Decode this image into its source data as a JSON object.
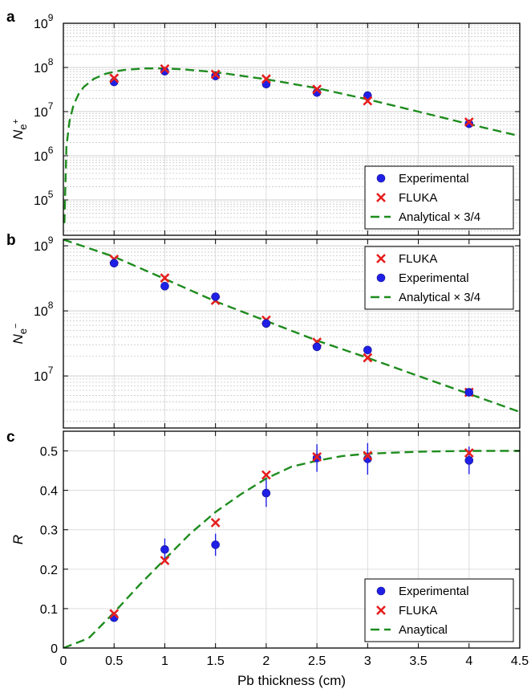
{
  "chart_data": [
    {
      "panel": "a",
      "type": "scatter",
      "ylabel": "N_{e+}",
      "y_scale": "log",
      "xlim": [
        0,
        4.5
      ],
      "ylim_exp": [
        4.2,
        9
      ],
      "y_ticks": [
        {
          "exp": 5,
          "label": "10",
          "sup": "5"
        },
        {
          "exp": 6,
          "label": "10",
          "sup": "6"
        },
        {
          "exp": 7,
          "label": "10",
          "sup": "7"
        },
        {
          "exp": 8,
          "label": "10",
          "sup": "8"
        },
        {
          "exp": 9,
          "label": "10",
          "sup": "9"
        }
      ],
      "grid": true,
      "legend_position": "bottom-right",
      "legend": [
        "Experimental",
        "FLUKA",
        "Analytical × 3/4"
      ],
      "series": [
        {
          "name": "Experimental",
          "marker": "circle",
          "color": "#1f1fe6",
          "x": [
            0.5,
            1,
            1.5,
            2,
            2.5,
            3,
            4
          ],
          "y": [
            47000000,
            82000000,
            64000000,
            42000000,
            27000000,
            23000000,
            5300000
          ]
        },
        {
          "name": "FLUKA",
          "marker": "x",
          "color": "#e61e1e",
          "x": [
            0.5,
            1,
            1.5,
            2,
            2.5,
            3,
            4
          ],
          "y": [
            57000000,
            93000000,
            70000000,
            55000000,
            32000000,
            17500000,
            5800000
          ]
        }
      ],
      "analytical_curve": {
        "name": "Analytical × 3/4",
        "color": "#1e8c1e",
        "x": [
          0.01,
          0.03,
          0.06,
          0.1,
          0.15,
          0.2,
          0.3,
          0.4,
          0.5,
          0.6,
          0.8,
          1.0,
          1.2,
          1.5,
          2.0,
          2.5,
          3.0,
          3.5,
          4.0,
          4.5
        ],
        "y": [
          30000,
          1600000,
          6000000,
          14000000,
          25000000,
          36000000,
          55000000,
          70000000,
          80000000,
          88000000,
          95000000,
          95000000,
          90000000,
          78000000,
          54000000,
          34000000,
          19000000,
          10000000,
          5200000,
          2800000
        ]
      }
    },
    {
      "panel": "b",
      "type": "scatter",
      "ylabel": "N_{e−}",
      "y_scale": "log",
      "xlim": [
        0,
        4.5
      ],
      "ylim_exp": [
        6.2,
        9.1
      ],
      "y_ticks": [
        {
          "exp": 7,
          "label": "10",
          "sup": "7"
        },
        {
          "exp": 8,
          "label": "10",
          "sup": "8"
        },
        {
          "exp": 9,
          "label": "10",
          "sup": "9"
        }
      ],
      "grid": true,
      "legend_position": "top-right",
      "legend": [
        "FLUKA",
        "Experimental",
        "Analytical × 3/4"
      ],
      "series": [
        {
          "name": "FLUKA",
          "marker": "x",
          "color": "#e61e1e",
          "x": [
            0.5,
            1,
            1.5,
            2,
            2.5,
            3,
            4
          ],
          "y": [
            620000000,
            320000000,
            145000000,
            72000000,
            33000000,
            19000000,
            5600000
          ]
        },
        {
          "name": "Experimental",
          "marker": "circle",
          "color": "#1f1fe6",
          "x": [
            0.5,
            1,
            1.5,
            2,
            2.5,
            3,
            4
          ],
          "y": [
            540000000,
            240000000,
            165000000,
            64000000,
            28000000,
            25000000,
            5600000
          ]
        }
      ],
      "analytical_curve": {
        "name": "Analytical × 3/4",
        "color": "#1e8c1e",
        "x": [
          0,
          0.5,
          1.0,
          1.5,
          2.0,
          2.5,
          3.0,
          3.5,
          4.0,
          4.5
        ],
        "y": [
          1250000000,
          680000000,
          310000000,
          140000000,
          70000000,
          35000000,
          19000000,
          10000000,
          5300000,
          2800000
        ]
      }
    },
    {
      "panel": "c",
      "type": "scatter",
      "xlabel": "Pb thickness (cm)",
      "ylabel": "R",
      "xlim": [
        0,
        4.5
      ],
      "ylim": [
        0,
        0.55
      ],
      "x_ticks": [
        "0",
        "0.5",
        "1",
        "1.5",
        "2",
        "2.5",
        "3",
        "3.5",
        "4",
        "4.5"
      ],
      "y_ticks": [
        "0",
        "0.1",
        "0.2",
        "0.3",
        "0.4",
        "0.5"
      ],
      "grid": true,
      "legend_position": "bottom-right",
      "legend": [
        "Experimental",
        "FLUKA",
        "Anaytical"
      ],
      "series": [
        {
          "name": "Experimental",
          "marker": "circle",
          "color": "#1f1fe6",
          "x": [
            0.5,
            1,
            1.5,
            2,
            2.5,
            3,
            4
          ],
          "y": [
            0.077,
            0.25,
            0.262,
            0.393,
            0.482,
            0.48,
            0.476
          ],
          "err": [
            0.01,
            0.028,
            0.028,
            0.035,
            0.035,
            0.04,
            0.035
          ]
        },
        {
          "name": "FLUKA",
          "marker": "x",
          "color": "#e61e1e",
          "x": [
            0.5,
            1,
            1.5,
            2,
            2.5,
            3,
            4
          ],
          "y": [
            0.087,
            0.222,
            0.318,
            0.439,
            0.485,
            0.488,
            0.495
          ]
        }
      ],
      "analytical_curve": {
        "name": "Anaytical",
        "color": "#1e8c1e",
        "x": [
          0,
          0.25,
          0.5,
          0.75,
          1.0,
          1.25,
          1.5,
          1.75,
          2.0,
          2.25,
          2.5,
          2.75,
          3.0,
          3.5,
          4.0,
          4.5
        ],
        "y": [
          0,
          0.025,
          0.09,
          0.16,
          0.225,
          0.29,
          0.345,
          0.39,
          0.43,
          0.46,
          0.475,
          0.487,
          0.493,
          0.498,
          0.5,
          0.5
        ]
      }
    }
  ]
}
